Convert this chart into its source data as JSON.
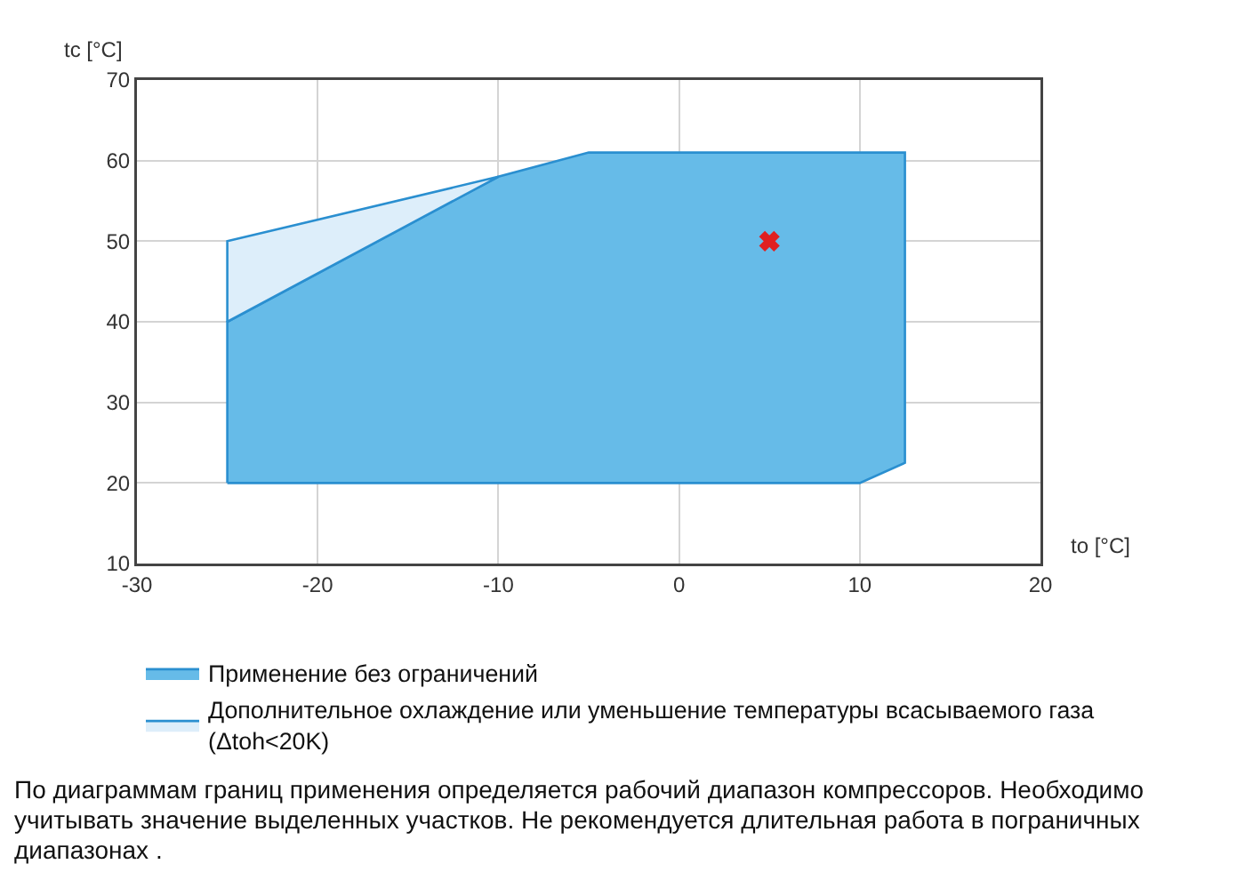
{
  "chart_data": {
    "type": "area",
    "xlabel": "to [°C]",
    "ylabel": "tc [°C]",
    "xlim": [
      -30,
      20
    ],
    "xticks": [
      -30,
      -20,
      -10,
      0,
      10,
      20
    ],
    "ylim": [
      10,
      70
    ],
    "yticks": [
      10,
      20,
      30,
      40,
      50,
      60,
      70
    ],
    "grid": true,
    "legend": "bottom",
    "series": [
      {
        "name": "Применение без ограничений",
        "color": "#66bbe8",
        "x": [
          -25,
          -25,
          -10,
          -5,
          12.5,
          12.5,
          10,
          -25
        ],
        "values": [
          20,
          40,
          58,
          61,
          61,
          22.5,
          20,
          20
        ]
      },
      {
        "name": "Дополнительное охлаждение или уменьшение температуры всасываемого газа\n(Δtoh<20K)",
        "color": "#ddeefa",
        "x": [
          -25,
          -25,
          -10,
          -25
        ],
        "values": [
          40,
          50,
          58,
          40
        ]
      },
      {
        "type": "scatter",
        "color": "#e02020",
        "marker": "cross",
        "x": [
          5
        ],
        "values": [
          50
        ]
      }
    ],
    "annotations": [
      "По диаграммам границ применения определяется рабочий диапазон компрессоров. Необходимо учитывать значение выделенных участков. Не рекомендуется длительная работа в пограничных диапазонах ."
    ]
  }
}
